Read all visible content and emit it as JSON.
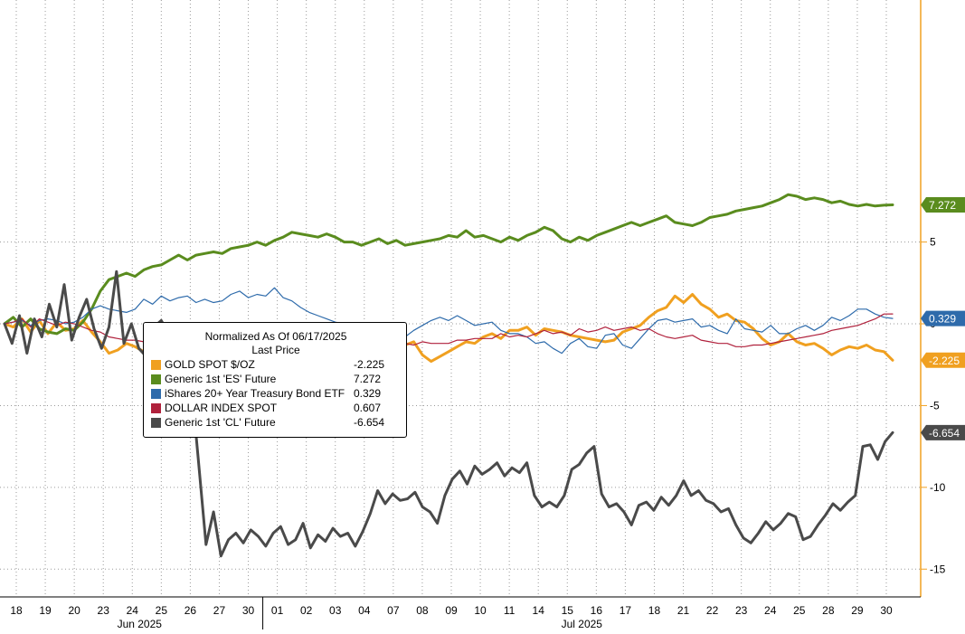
{
  "chart_data": {
    "type": "line",
    "legend": {
      "title": "Normalized As Of 06/17/2025",
      "subtitle": "Last Price",
      "placement": "center-left"
    },
    "grid": true,
    "ylim": [
      -16.7,
      19.8
    ],
    "yticks": [
      "5",
      "0",
      "-5",
      "-10",
      "-15"
    ],
    "ytick_values": [
      5,
      0,
      -5,
      -10,
      -15
    ],
    "x_day_labels": [
      "18",
      "19",
      "20",
      "23",
      "24",
      "25",
      "26",
      "27",
      "30",
      "01",
      "02",
      "03",
      "04",
      "07",
      "08",
      "09",
      "10",
      "11",
      "14",
      "15",
      "16",
      "17",
      "18",
      "21",
      "22",
      "23",
      "24",
      "25",
      "28",
      "29",
      "30"
    ],
    "x_month_labels": [
      "Jun 2025",
      "Jul 2025"
    ],
    "series": [
      {
        "name": "GOLD SPOT $/OZ",
        "last": "-2.225",
        "last_value": -2.225,
        "color": "#f0a020",
        "width": 3,
        "values": [
          0.0,
          -0.2,
          0.3,
          -0.5,
          0.2,
          -0.6,
          0.1,
          -0.4,
          -0.3,
          0.2,
          -0.5,
          -1.1,
          -1.8,
          -1.6,
          -1.2,
          -1.4,
          -1.7,
          -1.3,
          -1.6,
          -2.0,
          -2.6,
          -2.3,
          -3.2,
          -3.1,
          -2.6,
          -2.2,
          -2.0,
          -1.5,
          -0.7,
          -0.9,
          -1.1,
          -0.5,
          -0.4,
          -0.9,
          -0.4,
          -0.1,
          -0.7,
          -0.9,
          -1.2,
          -1.3,
          -1.1,
          -0.9,
          -1.6,
          -1.9,
          -1.7,
          -1.5,
          -1.3,
          -1.1,
          -1.9,
          -2.3,
          -2.0,
          -1.7,
          -1.4,
          -1.1,
          -1.2,
          -0.8,
          -0.6,
          -0.9,
          -0.4,
          -0.4,
          -0.2,
          -0.7,
          -0.3,
          -0.4,
          -0.5,
          -0.7,
          -0.8,
          -0.9,
          -1.0,
          -1.1,
          -1.0,
          -0.5,
          -0.3,
          -0.1,
          0.4,
          0.8,
          1.0,
          1.7,
          1.3,
          1.8,
          1.2,
          0.9,
          0.4,
          0.6,
          0.2,
          0.1,
          -0.3,
          -0.9,
          -1.3,
          -1.1,
          -0.6,
          -1.1,
          -1.3,
          -1.2,
          -1.5,
          -1.9,
          -1.6,
          -1.4,
          -1.5,
          -1.3,
          -1.6,
          -1.7,
          -2.225
        ]
      },
      {
        "name": "Generic 1st 'ES' Future",
        "last": "7.272",
        "last_value": 7.272,
        "color": "#5a8c1e",
        "width": 3,
        "values": [
          0.0,
          0.4,
          -0.2,
          0.3,
          -0.3,
          -0.5,
          -0.6,
          -0.3,
          -0.4,
          0.1,
          0.9,
          2.0,
          2.7,
          2.9,
          3.1,
          2.9,
          3.3,
          3.5,
          3.6,
          3.9,
          4.2,
          3.9,
          4.2,
          4.3,
          4.4,
          4.3,
          4.6,
          4.7,
          4.8,
          5.0,
          4.8,
          5.1,
          5.3,
          5.6,
          5.5,
          5.4,
          5.3,
          5.5,
          5.3,
          5.0,
          5.0,
          4.8,
          5.0,
          5.2,
          4.9,
          5.1,
          4.8,
          4.9,
          5.0,
          5.1,
          5.2,
          5.4,
          5.3,
          5.7,
          5.3,
          5.4,
          5.2,
          5.0,
          5.3,
          5.1,
          5.4,
          5.6,
          5.9,
          5.7,
          5.2,
          5.0,
          5.3,
          5.1,
          5.4,
          5.6,
          5.8,
          6.0,
          6.2,
          6.0,
          6.2,
          6.4,
          6.6,
          6.2,
          6.1,
          6.0,
          6.2,
          6.5,
          6.6,
          6.7,
          6.9,
          7.0,
          7.1,
          7.2,
          7.4,
          7.6,
          7.9,
          7.8,
          7.6,
          7.7,
          7.6,
          7.4,
          7.5,
          7.3,
          7.2,
          7.3,
          7.2,
          7.25,
          7.272
        ]
      },
      {
        "name": "iShares 20+ Year Treasury Bond ETF",
        "last": "0.329",
        "last_value": 0.329,
        "color": "#2e6bab",
        "width": 1.2,
        "values": [
          0.0,
          0.1,
          0.2,
          -0.1,
          0.2,
          0.3,
          0.2,
          0.0,
          0.1,
          0.4,
          0.9,
          1.1,
          0.9,
          0.8,
          0.7,
          0.9,
          1.5,
          1.2,
          1.7,
          1.4,
          1.6,
          1.7,
          1.3,
          1.5,
          1.3,
          1.4,
          1.8,
          2.0,
          1.6,
          1.8,
          1.7,
          2.2,
          1.6,
          1.4,
          1.0,
          0.7,
          0.5,
          0.3,
          0.1,
          0.0,
          -0.2,
          -0.6,
          -0.8,
          -1.0,
          -1.2,
          -1.3,
          -0.8,
          -0.4,
          -0.1,
          0.2,
          0.4,
          0.2,
          0.5,
          0.2,
          -0.1,
          0.0,
          0.1,
          -0.4,
          -0.6,
          -0.6,
          -0.8,
          -1.2,
          -1.1,
          -1.5,
          -1.8,
          -1.2,
          -0.9,
          -1.4,
          -1.5,
          -0.7,
          -0.6,
          -1.3,
          -1.5,
          -0.9,
          -0.3,
          0.2,
          0.3,
          0.1,
          0.2,
          0.3,
          -0.2,
          -0.1,
          -0.4,
          -0.6,
          0.3,
          -0.3,
          -0.4,
          -0.5,
          -0.1,
          -0.6,
          -0.6,
          -0.3,
          -0.1,
          -0.4,
          -0.1,
          0.4,
          0.2,
          0.5,
          0.9,
          0.9,
          0.6,
          0.4,
          0.329
        ]
      },
      {
        "name": "DOLLAR INDEX SPOT",
        "last": "0.607",
        "last_value": 0.607,
        "color": "#b0213c",
        "width": 1.2,
        "values": [
          0.0,
          0.1,
          0.3,
          -0.2,
          0.3,
          0.1,
          -0.1,
          0.1,
          0.0,
          -0.2,
          -0.4,
          -0.5,
          -0.8,
          -0.9,
          -1.0,
          -1.0,
          -1.1,
          -1.2,
          -1.1,
          -1.4,
          -1.5,
          -1.4,
          -1.6,
          -1.7,
          -1.6,
          -1.8,
          -1.7,
          -2.0,
          -2.1,
          -2.0,
          -2.0,
          -1.7,
          -1.6,
          -1.8,
          -1.7,
          -1.6,
          -1.7,
          -1.7,
          -1.6,
          -1.6,
          -1.5,
          -1.5,
          -1.6,
          -1.7,
          -1.5,
          -1.3,
          -1.2,
          -1.3,
          -1.1,
          -1.2,
          -1.2,
          -1.2,
          -1.0,
          -1.0,
          -0.9,
          -0.9,
          -0.9,
          -0.6,
          -0.8,
          -0.7,
          -0.8,
          -0.6,
          -0.4,
          -0.6,
          -0.5,
          -0.7,
          -0.3,
          -0.5,
          -0.4,
          -0.2,
          -0.4,
          -0.3,
          -0.2,
          -0.4,
          -0.3,
          -0.6,
          -0.8,
          -0.9,
          -0.8,
          -0.7,
          -1.0,
          -1.1,
          -1.2,
          -1.2,
          -1.4,
          -1.4,
          -1.3,
          -1.3,
          -1.2,
          -1.1,
          -1.0,
          -0.9,
          -0.8,
          -0.7,
          -0.6,
          -0.4,
          -0.3,
          -0.2,
          -0.1,
          0.1,
          0.3,
          0.6,
          0.607
        ]
      },
      {
        "name": "Generic 1st 'CL' Future",
        "last": "-6.654",
        "last_value": -6.654,
        "color": "#4a4a4a",
        "width": 3,
        "values": [
          0.0,
          -1.2,
          0.5,
          -1.8,
          0.3,
          -0.8,
          1.2,
          -0.2,
          2.4,
          -1.0,
          0.4,
          1.5,
          -0.3,
          -1.5,
          -0.2,
          3.2,
          -1.2,
          0.0,
          -1.5,
          -2.0,
          -0.2,
          0.2,
          -0.6,
          -1.5,
          -0.3,
          -3.5,
          -8.5,
          -13.5,
          -11.5,
          -14.2,
          -13.2,
          -12.8,
          -13.4,
          -12.6,
          -13.0,
          -13.6,
          -12.8,
          -12.4,
          -13.5,
          -13.2,
          -12.2,
          -13.7,
          -12.9,
          -13.3,
          -12.5,
          -13.0,
          -12.8,
          -13.6,
          -12.7,
          -11.6,
          -10.2,
          -11.0,
          -10.4,
          -10.8,
          -10.7,
          -10.3,
          -11.2,
          -11.5,
          -12.2,
          -10.5,
          -9.5,
          -9.0,
          -9.8,
          -8.7,
          -9.2,
          -8.9,
          -8.5,
          -9.3,
          -8.8,
          -9.1,
          -8.5,
          -10.5,
          -11.2,
          -10.9,
          -11.2,
          -10.5,
          -8.9,
          -8.6,
          -7.9,
          -7.5,
          -10.4,
          -11.2,
          -11.0,
          -11.5,
          -12.3,
          -11.1,
          -10.9,
          -11.4,
          -10.6,
          -11.1,
          -10.5,
          -9.6,
          -10.5,
          -10.2,
          -10.8,
          -11.0,
          -11.5,
          -11.3,
          -12.3,
          -13.1,
          -13.4,
          -12.8,
          -12.1,
          -12.6,
          -12.2,
          -11.6,
          -11.8,
          -13.2,
          -13.0,
          -12.3,
          -11.7,
          -11.0,
          -11.4,
          -10.9,
          -10.5,
          -7.5,
          -7.4,
          -8.3,
          -7.2,
          -6.654
        ]
      }
    ]
  }
}
